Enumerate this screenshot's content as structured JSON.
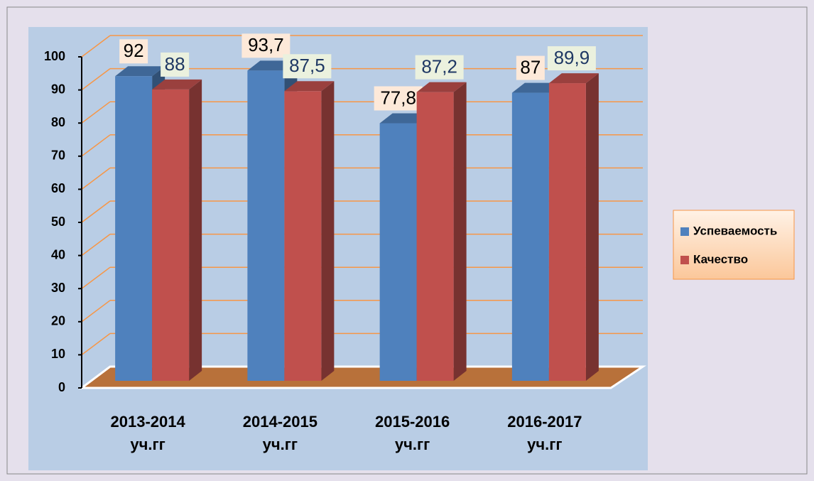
{
  "chart_data": {
    "type": "bar3d",
    "categories": [
      "2013-2014\nуч.гг",
      "2014-2015\nуч.гг",
      "2015-2016\nуч.гг",
      "2016-2017\nуч.гг"
    ],
    "series": [
      {
        "name": "Успеваемость",
        "color": "#4f81bd",
        "values": [
          92,
          93.7,
          77.8,
          87
        ],
        "value_labels": [
          "92",
          "93,7",
          "77,8",
          "87"
        ]
      },
      {
        "name": "Качество",
        "color": "#c0504d",
        "values": [
          88,
          87.5,
          87.2,
          89.9
        ],
        "value_labels": [
          "88",
          "87,5",
          "87,2",
          "89,9"
        ]
      }
    ],
    "ylim": [
      0,
      100
    ],
    "yticks": [
      0,
      10,
      20,
      30,
      40,
      50,
      60,
      70,
      80,
      90,
      100
    ],
    "grid": true,
    "legend": "right"
  }
}
